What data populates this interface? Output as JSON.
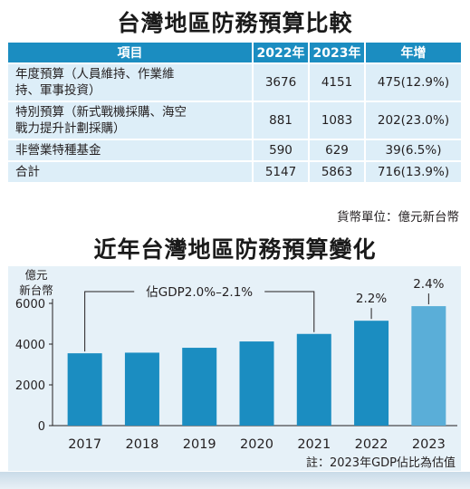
{
  "table_title": "台灣地區防務預算比較",
  "table": {
    "headers": [
      "項目",
      "2022年",
      "2023年",
      "年增"
    ],
    "rows": [
      {
        "item_line1": "年度預算（人員維持、作業維",
        "item_line2": "持、軍事投資）",
        "y2022": "3676",
        "y2023": "4151",
        "change": "475(12.9%)"
      },
      {
        "item_line1": "特別預算（新式戰機採購、海空",
        "item_line2": "戰力提升計劃採購）",
        "y2022": "881",
        "y2023": "1083",
        "change": "202(23.0%)"
      },
      {
        "item_line1": "非營業特種基金",
        "item_line2": "",
        "y2022": "590",
        "y2023": "629",
        "change": "39(6.5%)"
      },
      {
        "item_line1": "合計",
        "item_line2": "",
        "y2022": "5147",
        "y2023": "5863",
        "change": "716(13.9%)"
      }
    ],
    "unit_note": "貨幣單位：億元新台幣"
  },
  "chart_title": "近年台灣地區防務預算變化",
  "colors": {
    "bar": "#1b8dc1",
    "bar_estimate": "#5aaed8",
    "header": "#1b8dc1",
    "table_row": "#ddeef8",
    "chart_bg": "#e6f1f8"
  },
  "chart_data": {
    "type": "bar",
    "categories": [
      "2017",
      "2018",
      "2019",
      "2020",
      "2021",
      "2022",
      "2023"
    ],
    "values": [
      3550,
      3580,
      3820,
      4130,
      4500,
      5147,
      5863
    ],
    "estimate_category": "2023",
    "ylabel_line1": "億元",
    "ylabel_line2": "新台幣",
    "yticks": [
      0,
      2000,
      4000,
      6000
    ],
    "ylim": [
      0,
      6300
    ],
    "grid": false,
    "annotations": {
      "bracket_label": "佔GDP2.0%–2.1%",
      "bracket_from": "2017",
      "bracket_to": "2021",
      "point_labels": [
        {
          "category": "2022",
          "text": "2.2%"
        },
        {
          "category": "2023",
          "text": "2.4%"
        }
      ]
    },
    "note": "註：2023年GDP佔比為估值"
  }
}
